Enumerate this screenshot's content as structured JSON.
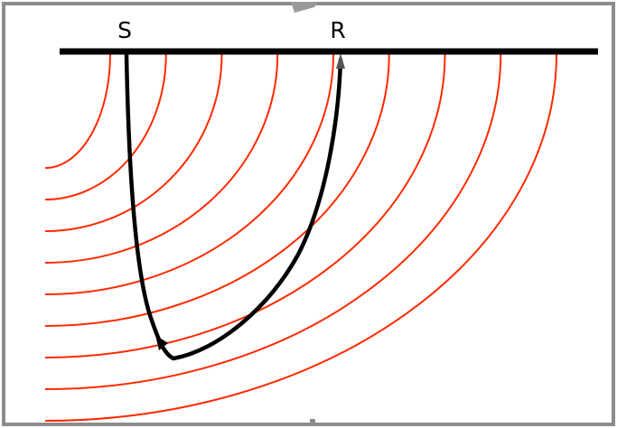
{
  "labels": {
    "source": "S",
    "receiver": "R"
  },
  "colors": {
    "wavefront": "#ff2a00",
    "ray": "#000000",
    "surface": "#000000",
    "frame": "#8c8c8c",
    "background": "#ffffff"
  },
  "wavefront_count": 9
}
